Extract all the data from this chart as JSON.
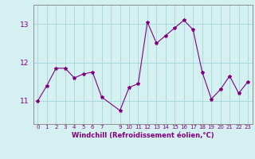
{
  "x": [
    0,
    1,
    2,
    3,
    4,
    5,
    6,
    7,
    9,
    10,
    11,
    12,
    13,
    14,
    15,
    16,
    17,
    18,
    19,
    20,
    21,
    22,
    23
  ],
  "y": [
    11.0,
    11.4,
    11.85,
    11.85,
    11.6,
    11.7,
    11.75,
    11.1,
    10.75,
    11.35,
    11.45,
    13.05,
    12.5,
    12.7,
    12.9,
    13.1,
    12.85,
    11.75,
    11.05,
    11.3,
    11.65,
    11.2,
    11.5
  ],
  "line_color": "#800080",
  "marker": "*",
  "marker_size": 3,
  "bg_color": "#d4f0f0",
  "grid_color": "#aadada",
  "xlabel": "Windchill (Refroidissement éolien,°C)",
  "yticks": [
    11,
    12,
    13
  ],
  "ylim": [
    10.4,
    13.5
  ],
  "xlim": [
    -0.5,
    23.5
  ],
  "xticks": [
    0,
    1,
    2,
    3,
    4,
    5,
    6,
    7,
    8,
    9,
    10,
    11,
    12,
    13,
    14,
    15,
    16,
    17,
    18,
    19,
    20,
    21,
    22,
    23
  ],
  "xtick_labels": [
    "0",
    "1",
    "2",
    "3",
    "4",
    "5",
    "6",
    "7",
    "",
    "9",
    "10",
    "11",
    "12",
    "13",
    "14",
    "15",
    "16",
    "17",
    "18",
    "19",
    "20",
    "21",
    "22",
    "23"
  ]
}
